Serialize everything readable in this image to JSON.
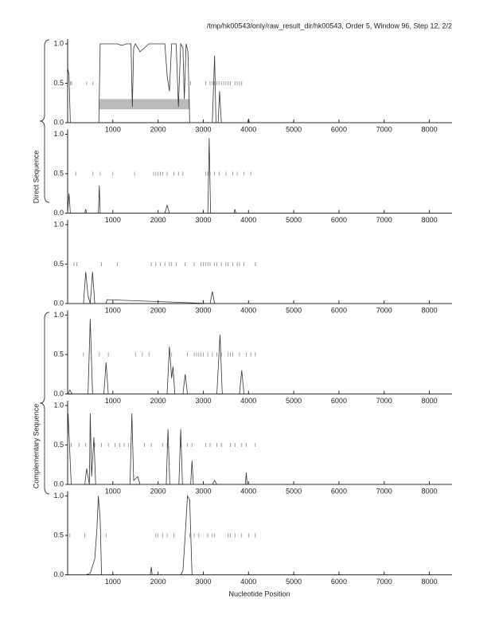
{
  "header": "/tmp/hk00543/only/raw_result_dir/hk00543, Order 5, Window 96, Step 12, 2/2",
  "y_labels": [
    "Direct Sequence",
    "Complementary Sequence"
  ],
  "x_label": "Nucleotide Position",
  "chart_data": [
    {
      "type": "line",
      "color": "#333333",
      "xlim": [
        0,
        8500
      ],
      "ylim": [
        0,
        1
      ],
      "xticks": [
        1000,
        2000,
        3000,
        4000,
        5000,
        6000,
        7000,
        8000
      ],
      "yticks": [
        {
          "value": 0,
          "label": "0.0"
        },
        0.5,
        {
          "value": 1,
          "label": "1.0"
        }
      ],
      "x": [
        0,
        30,
        60,
        100,
        690,
        720,
        800,
        1000,
        1100,
        1200,
        1300,
        1400,
        1430,
        1460,
        1500,
        1600,
        1700,
        1800,
        2000,
        2150,
        2200,
        2250,
        2300,
        2400,
        2450,
        2500,
        2550,
        2580,
        2620,
        2660,
        2700,
        3200,
        3250,
        3280,
        3330,
        3360,
        3400,
        3980,
        4000,
        4020,
        8500
      ],
      "series": [
        {
          "values": [
            0.7,
            0.6,
            0,
            0,
            0,
            1,
            1,
            1,
            1,
            0.98,
            1,
            1,
            0.2,
            0.95,
            1,
            0.9,
            0.95,
            1,
            1,
            1,
            0.6,
            0.4,
            1,
            1,
            0.2,
            1,
            0.95,
            0.3,
            1,
            0.9,
            0,
            0,
            0.85,
            0,
            0,
            0.4,
            0,
            0,
            0.05,
            0,
            0
          ]
        }
      ],
      "markers": {
        "y": 0.5,
        "x": [
          60,
          90,
          420,
          560,
          2720,
          3050,
          3150,
          3200,
          3250,
          3300,
          3350,
          3400,
          3450,
          3500,
          3550,
          3600,
          3700,
          3750,
          3800,
          3850
        ]
      },
      "highlight": {
        "x": [
          700,
          2700
        ],
        "y": [
          0.17,
          0.3
        ],
        "color": "#bbbbbb"
      }
    },
    {
      "type": "line",
      "color": "#333333",
      "xlim": [
        0,
        8500
      ],
      "ylim": [
        0,
        1
      ],
      "xticks": [
        1000,
        2000,
        3000,
        4000,
        5000,
        6000,
        7000,
        8000
      ],
      "yticks": [
        {
          "value": 0,
          "label": "0.0"
        },
        0.5,
        {
          "value": 1,
          "label": "1.0"
        }
      ],
      "x": [
        0,
        30,
        60,
        380,
        400,
        420,
        680,
        700,
        720,
        2150,
        2200,
        2250,
        3100,
        3130,
        3160,
        3680,
        3700,
        3720,
        8500
      ],
      "series": [
        {
          "values": [
            0,
            0.25,
            0,
            0,
            0.05,
            0,
            0,
            0.35,
            0,
            0,
            0.1,
            0,
            0,
            0.95,
            0,
            0,
            0.05,
            0,
            0
          ]
        }
      ],
      "markers": {
        "y": 0.5,
        "x": [
          180,
          560,
          720,
          1000,
          1480,
          1900,
          1950,
          2000,
          2050,
          2100,
          2200,
          2350,
          2450,
          2550,
          3050,
          3100,
          3150,
          3250,
          3350,
          3500,
          3650,
          3750,
          3900,
          4050
        ]
      }
    },
    {
      "type": "line",
      "color": "#333333",
      "xlim": [
        0,
        8500
      ],
      "ylim": [
        0,
        1
      ],
      "xticks": [
        1000,
        2000,
        3000,
        4000,
        5000,
        6000,
        7000,
        8000
      ],
      "yticks": [
        {
          "value": 0,
          "label": "0.0"
        },
        0.5,
        {
          "value": 1,
          "label": "1.0"
        }
      ],
      "x": [
        0,
        350,
        400,
        450,
        500,
        550,
        600,
        850,
        870,
        3150,
        3200,
        3250,
        8500
      ],
      "series": [
        {
          "values": [
            0,
            0,
            0.4,
            0.1,
            0,
            0.4,
            0,
            0,
            0.05,
            0,
            0.15,
            0,
            0
          ]
        }
      ],
      "markers": {
        "y": 0.5,
        "x": [
          140,
          200,
          750,
          1100,
          1850,
          1950,
          2050,
          2150,
          2250,
          2300,
          2400,
          2600,
          2800,
          2950,
          3000,
          3050,
          3100,
          3150,
          3250,
          3300,
          3400,
          3500,
          3550,
          3650,
          3750,
          3800,
          3900,
          4150
        ]
      }
    },
    {
      "type": "line",
      "color": "#333333",
      "xlim": [
        0,
        8500
      ],
      "ylim": [
        0,
        1
      ],
      "xticks": [
        1000,
        2000,
        3000,
        4000,
        5000,
        6000,
        7000,
        8000
      ],
      "yticks": [
        {
          "value": 0,
          "label": "0.0"
        },
        0.5,
        {
          "value": 1,
          "label": "1.0"
        }
      ],
      "x": [
        0,
        50,
        100,
        450,
        500,
        550,
        800,
        850,
        900,
        2200,
        2250,
        2300,
        2330,
        2370,
        2550,
        2600,
        2650,
        3300,
        3370,
        3420,
        3800,
        3850,
        3900,
        8500
      ],
      "series": [
        {
          "values": [
            0,
            0.05,
            0,
            0,
            0.95,
            0,
            0,
            0.4,
            0,
            0,
            0.6,
            0.2,
            0.35,
            0,
            0,
            0.25,
            0,
            0,
            0.75,
            0,
            0,
            0.3,
            0,
            0
          ]
        }
      ],
      "markers": {
        "y": 0.5,
        "x": [
          350,
          700,
          900,
          1500,
          1650,
          1800,
          2300,
          2650,
          2800,
          2850,
          2900,
          2950,
          3000,
          3100,
          3200,
          3300,
          3400,
          3550,
          3600,
          3650,
          3800,
          3950,
          4050,
          4150
        ]
      }
    },
    {
      "type": "line",
      "color": "#333333",
      "xlim": [
        0,
        8500
      ],
      "ylim": [
        0,
        1
      ],
      "xticks": [
        1000,
        2000,
        3000,
        4000,
        5000,
        6000,
        7000,
        8000
      ],
      "yticks": [
        {
          "value": 0,
          "label": "0.0"
        },
        0.5,
        {
          "value": 1,
          "label": "1.0"
        }
      ],
      "x": [
        0,
        10,
        80,
        380,
        420,
        480,
        500,
        530,
        580,
        620,
        1380,
        1420,
        1460,
        1550,
        1600,
        2180,
        2220,
        2260,
        2460,
        2500,
        2540,
        2720,
        2750,
        2780,
        3200,
        3250,
        3300,
        3930,
        3950,
        3970,
        8500
      ],
      "series": [
        {
          "values": [
            0.5,
            0.9,
            0,
            0,
            0.2,
            0,
            0.9,
            0.1,
            0.6,
            0,
            0,
            0.9,
            0.05,
            0.1,
            0,
            0,
            0.7,
            0,
            0,
            0.7,
            0,
            0,
            0.3,
            0,
            0,
            0.05,
            0,
            0,
            0.15,
            0,
            0
          ]
        }
      ],
      "markers": {
        "y": 0.5,
        "x": [
          80,
          250,
          400,
          600,
          750,
          900,
          1050,
          1150,
          1250,
          1350,
          1400,
          1700,
          1850,
          2100,
          2200,
          2500,
          2650,
          2750,
          3050,
          3150,
          3300,
          3400,
          3600,
          3700,
          3850,
          3950,
          4150
        ]
      }
    },
    {
      "type": "line",
      "color": "#333333",
      "xlim": [
        0,
        8500
      ],
      "ylim": [
        0,
        1
      ],
      "xticks": [
        1000,
        2000,
        3000,
        4000,
        5000,
        6000,
        7000,
        8000
      ],
      "yticks": [
        {
          "value": 0,
          "label": "0.0"
        },
        0.5,
        {
          "value": 1,
          "label": "1.0"
        }
      ],
      "x": [
        0,
        400,
        500,
        600,
        650,
        680,
        720,
        750,
        1830,
        1850,
        1870,
        2500,
        2550,
        2600,
        2650,
        2700,
        2750,
        8500
      ],
      "series": [
        {
          "values": [
            0,
            0,
            0.02,
            0.2,
            0.6,
            1,
            0.7,
            0,
            0,
            0.1,
            0,
            0,
            0.05,
            0.5,
            1,
            0.95,
            0,
            0
          ]
        }
      ],
      "markers": {
        "y": 0.5,
        "x": [
          50,
          380,
          850,
          1950,
          2000,
          2100,
          2200,
          2350,
          2700,
          2800,
          2900,
          3100,
          3200,
          3250,
          3550,
          3600,
          3700,
          3850,
          4000,
          4150
        ]
      }
    }
  ]
}
